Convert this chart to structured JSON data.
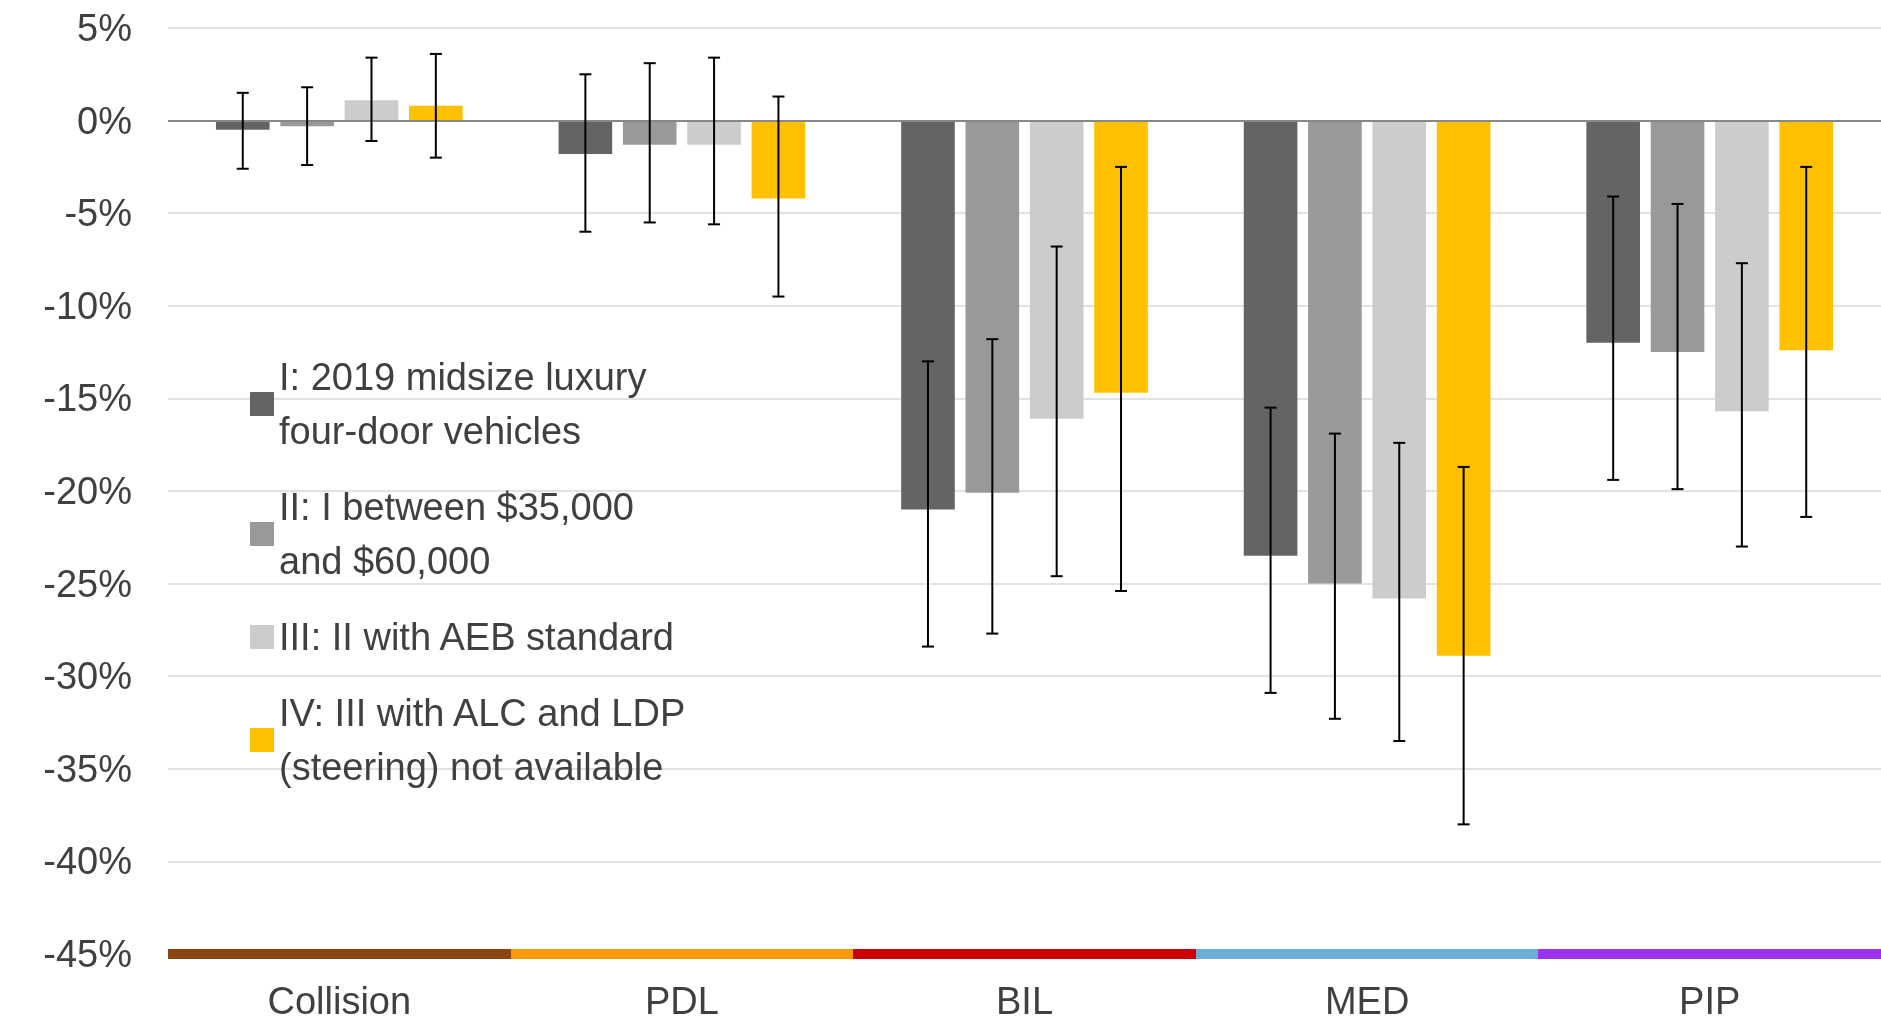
{
  "chart_data": {
    "type": "bar",
    "categories": [
      "Collision",
      "PDL",
      "BIL",
      "MED",
      "PIP"
    ],
    "ylim": [
      -45,
      5
    ],
    "yticks": [
      {
        "value": -45,
        "label": "-45%"
      },
      {
        "value": -40,
        "label": "-40%"
      },
      {
        "value": -35,
        "label": "-35%"
      },
      {
        "value": -30,
        "label": "-30%"
      },
      {
        "value": -25,
        "label": "-25%"
      },
      {
        "value": -20,
        "label": "-20%"
      },
      {
        "value": -15,
        "label": "-15%"
      },
      {
        "value": -10,
        "label": "-10%"
      },
      {
        "value": -5,
        "label": "-5%"
      },
      {
        "value": 0,
        "label": "0%"
      },
      {
        "value": 5,
        "label": "5%"
      }
    ],
    "grid": "y",
    "legend": "left",
    "series": [
      {
        "name": "I: 2019 midsize luxury four-door vehicles",
        "color": "#646464",
        "values": [
          -0.5,
          -1.8,
          -21.0,
          -23.5,
          -12.0
        ],
        "errors": [
          [
            -2.6,
            1.5
          ],
          [
            -6.0,
            2.5
          ],
          [
            -28.4,
            -13.0
          ],
          [
            -30.9,
            -15.5
          ],
          [
            -19.4,
            -4.1
          ]
        ]
      },
      {
        "name": "II: I between $35,000 and $60,000",
        "color": "#999999",
        "values": [
          -0.3,
          -1.3,
          -20.1,
          -25.0,
          -12.5
        ],
        "errors": [
          [
            -2.4,
            1.8
          ],
          [
            -5.5,
            3.1
          ],
          [
            -27.7,
            -11.8
          ],
          [
            -32.3,
            -16.9
          ],
          [
            -19.9,
            -4.5
          ]
        ]
      },
      {
        "name": "III: II with AEB standard",
        "color": "#cccccc",
        "values": [
          1.1,
          -1.3,
          -16.1,
          -25.8,
          -15.7
        ],
        "errors": [
          [
            -1.1,
            3.4
          ],
          [
            -5.6,
            3.4
          ],
          [
            -24.6,
            -6.8
          ],
          [
            -33.5,
            -17.4
          ],
          [
            -23.0,
            -7.7
          ]
        ]
      },
      {
        "name": "IV: III with ALC and LDP (steering) not available",
        "color": "#ffc000",
        "values": [
          0.8,
          -4.2,
          -14.7,
          -28.9,
          -12.4
        ],
        "errors": [
          [
            -2.0,
            3.6
          ],
          [
            -9.5,
            1.3
          ],
          [
            -25.4,
            -2.5
          ],
          [
            -38.0,
            -18.7
          ],
          [
            -21.4,
            -2.5
          ]
        ]
      }
    ]
  }
}
